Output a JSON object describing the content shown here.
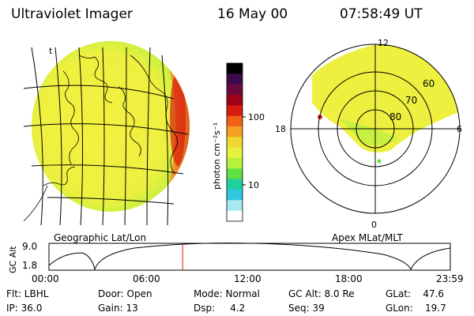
{
  "header": {
    "instrument": "Ultraviolet Imager",
    "date": "16 May 00",
    "time": "07:58:49 UT"
  },
  "earth_panel": {
    "label": "Geographic Lat/Lon",
    "corner_mark": "t"
  },
  "polar_panel": {
    "label": "Apex MLat/MLT",
    "mlt_labels": [
      "12",
      "18",
      "6",
      "0"
    ],
    "lat_labels": [
      "60",
      "70",
      "80"
    ]
  },
  "colorbar": {
    "unit_label": "photon cm⁻²s⁻¹",
    "ticks": [
      "100",
      "10"
    ],
    "colors": [
      "#000000",
      "#3b0a4a",
      "#6a0a3c",
      "#a0001a",
      "#d81a10",
      "#f06018",
      "#f5a020",
      "#f0d830",
      "#e8f040",
      "#b8f040",
      "#60e040",
      "#20d0a0",
      "#30c8e0",
      "#a8e8f0",
      "#ffffff"
    ]
  },
  "altitude_plot": {
    "ylabel": "GC Alt",
    "y_ticks": [
      "9.0",
      "1.8"
    ],
    "x_ticks": [
      "00:00",
      "06:00",
      "12:00",
      "18:00",
      "23:59"
    ],
    "current_time_fraction": 0.333
  },
  "status": {
    "filter": "Flt: LBHL",
    "ip": "IP: 36.0",
    "door": "Door: Open",
    "gain": "Gain: 13",
    "mode": "Mode: Normal",
    "dsp": "Dsp:     4.2",
    "gc_alt": "GC Alt: 8.0 Re",
    "seq": "Seq: 39",
    "glat": "GLat:    47.6",
    "glon": "GLon:    19.7"
  }
}
